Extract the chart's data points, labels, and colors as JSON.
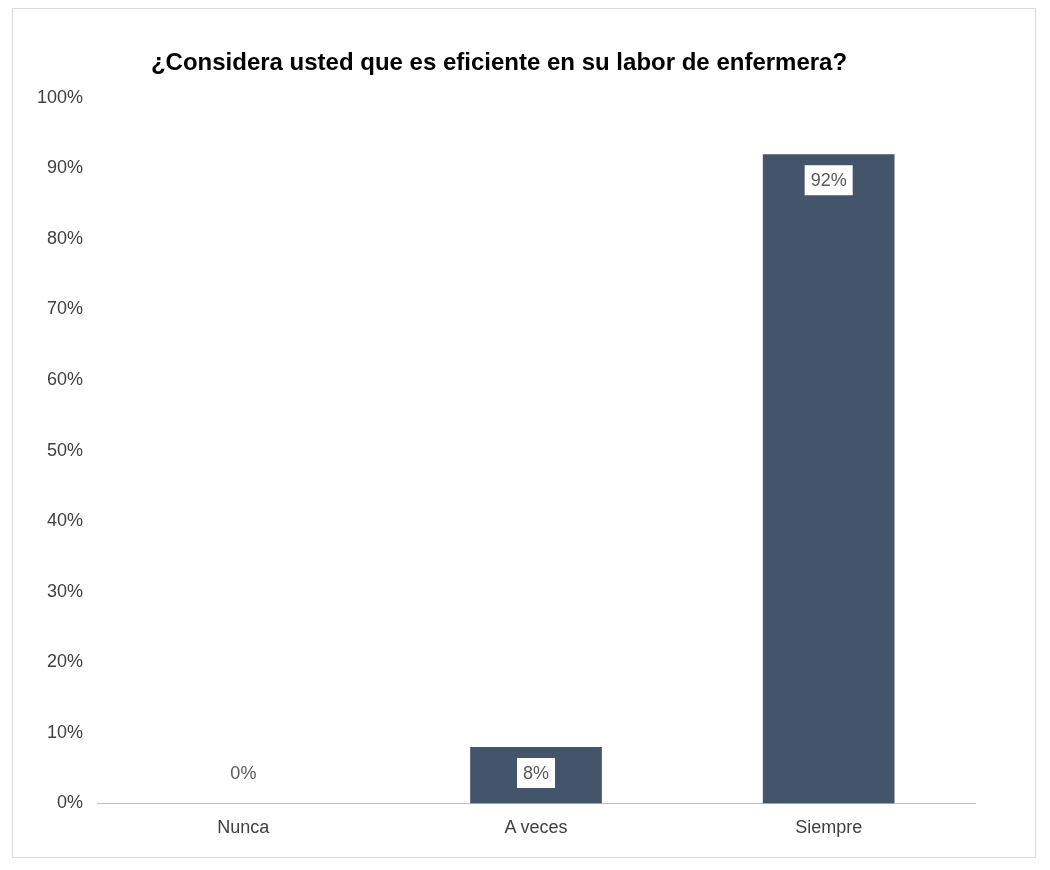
{
  "chart_data": {
    "type": "bar",
    "title": "¿Considera usted que es eficiente en su labor de enfermera?",
    "categories": [
      "Nunca",
      "A veces",
      "Siempre"
    ],
    "values": [
      0,
      8,
      92
    ],
    "value_labels": [
      "0%",
      "8%",
      "92%"
    ],
    "color": "#44546a",
    "ylim": [
      0,
      100
    ],
    "yticks": [
      {
        "value": 0,
        "label": "0%"
      },
      {
        "value": 10,
        "label": "10%"
      },
      {
        "value": 20,
        "label": "20%"
      },
      {
        "value": 30,
        "label": "30%"
      },
      {
        "value": 40,
        "label": "40%"
      },
      {
        "value": 50,
        "label": "50%"
      },
      {
        "value": 60,
        "label": "60%"
      },
      {
        "value": 70,
        "label": "70%"
      },
      {
        "value": 80,
        "label": "80%"
      },
      {
        "value": 90,
        "label": "90%"
      },
      {
        "value": 100,
        "label": "100%"
      }
    ],
    "grid": false
  }
}
